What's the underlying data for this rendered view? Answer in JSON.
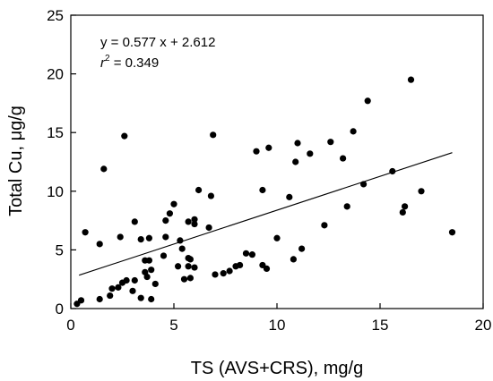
{
  "chart_data": {
    "type": "scatter",
    "title": "",
    "xlabel": "TS (AVS+CRS), mg/g",
    "ylabel": "Total Cu, μg/g",
    "xlim": [
      0,
      20
    ],
    "ylim": [
      0,
      25
    ],
    "xticks": [
      "0",
      "5",
      "10",
      "15",
      "20"
    ],
    "yticks": [
      "0",
      "5",
      "10",
      "15",
      "20",
      "25"
    ],
    "grid": false,
    "legend": "none",
    "point_color": "#000000",
    "trendline": {
      "slope": 0.577,
      "intercept": 2.612,
      "x_range": [
        0.4,
        18.5
      ],
      "equation_text": "y = 0.577 x + 2.612",
      "r2_symbol": "r",
      "r2_exponent": "2",
      "r2_text": " = 0.349"
    },
    "points": [
      [
        0.3,
        0.4
      ],
      [
        0.5,
        0.7
      ],
      [
        0.7,
        6.5
      ],
      [
        1.4,
        0.8
      ],
      [
        1.4,
        5.5
      ],
      [
        1.6,
        11.9
      ],
      [
        1.9,
        1.1
      ],
      [
        2.0,
        1.7
      ],
      [
        2.3,
        1.8
      ],
      [
        2.4,
        6.1
      ],
      [
        2.5,
        2.2
      ],
      [
        2.6,
        14.7
      ],
      [
        2.7,
        2.4
      ],
      [
        3.0,
        1.5
      ],
      [
        3.1,
        2.4
      ],
      [
        3.1,
        7.4
      ],
      [
        3.4,
        0.9
      ],
      [
        3.4,
        5.9
      ],
      [
        3.6,
        4.1
      ],
      [
        3.6,
        3.1
      ],
      [
        3.7,
        2.7
      ],
      [
        3.8,
        6.0
      ],
      [
        3.8,
        4.1
      ],
      [
        3.9,
        0.8
      ],
      [
        3.9,
        3.3
      ],
      [
        4.1,
        2.1
      ],
      [
        4.5,
        4.5
      ],
      [
        4.6,
        7.5
      ],
      [
        4.6,
        6.1
      ],
      [
        4.8,
        8.1
      ],
      [
        5.0,
        8.9
      ],
      [
        5.2,
        3.6
      ],
      [
        5.3,
        5.8
      ],
      [
        5.4,
        5.1
      ],
      [
        5.5,
        2.5
      ],
      [
        5.7,
        7.4
      ],
      [
        5.7,
        4.3
      ],
      [
        5.7,
        3.6
      ],
      [
        5.8,
        2.6
      ],
      [
        5.8,
        4.2
      ],
      [
        6.0,
        7.6
      ],
      [
        6.0,
        7.2
      ],
      [
        6.0,
        3.5
      ],
      [
        6.2,
        10.1
      ],
      [
        6.7,
        6.9
      ],
      [
        6.8,
        9.6
      ],
      [
        6.9,
        14.8
      ],
      [
        7.0,
        2.9
      ],
      [
        7.4,
        3.0
      ],
      [
        7.7,
        3.2
      ],
      [
        8.0,
        3.6
      ],
      [
        8.2,
        3.7
      ],
      [
        8.5,
        4.7
      ],
      [
        8.8,
        4.6
      ],
      [
        9.0,
        13.4
      ],
      [
        9.3,
        10.1
      ],
      [
        9.3,
        3.7
      ],
      [
        9.5,
        3.4
      ],
      [
        9.6,
        13.7
      ],
      [
        10.0,
        6.0
      ],
      [
        10.6,
        9.5
      ],
      [
        10.8,
        4.2
      ],
      [
        10.9,
        12.5
      ],
      [
        11.0,
        14.1
      ],
      [
        11.2,
        5.1
      ],
      [
        11.6,
        13.2
      ],
      [
        12.3,
        7.1
      ],
      [
        12.6,
        14.2
      ],
      [
        13.2,
        12.8
      ],
      [
        13.4,
        8.7
      ],
      [
        13.7,
        15.1
      ],
      [
        14.2,
        10.6
      ],
      [
        14.4,
        17.7
      ],
      [
        15.6,
        11.7
      ],
      [
        16.1,
        8.2
      ],
      [
        16.2,
        8.7
      ],
      [
        16.5,
        19.5
      ],
      [
        17.0,
        10.0
      ],
      [
        18.5,
        6.5
      ]
    ]
  }
}
